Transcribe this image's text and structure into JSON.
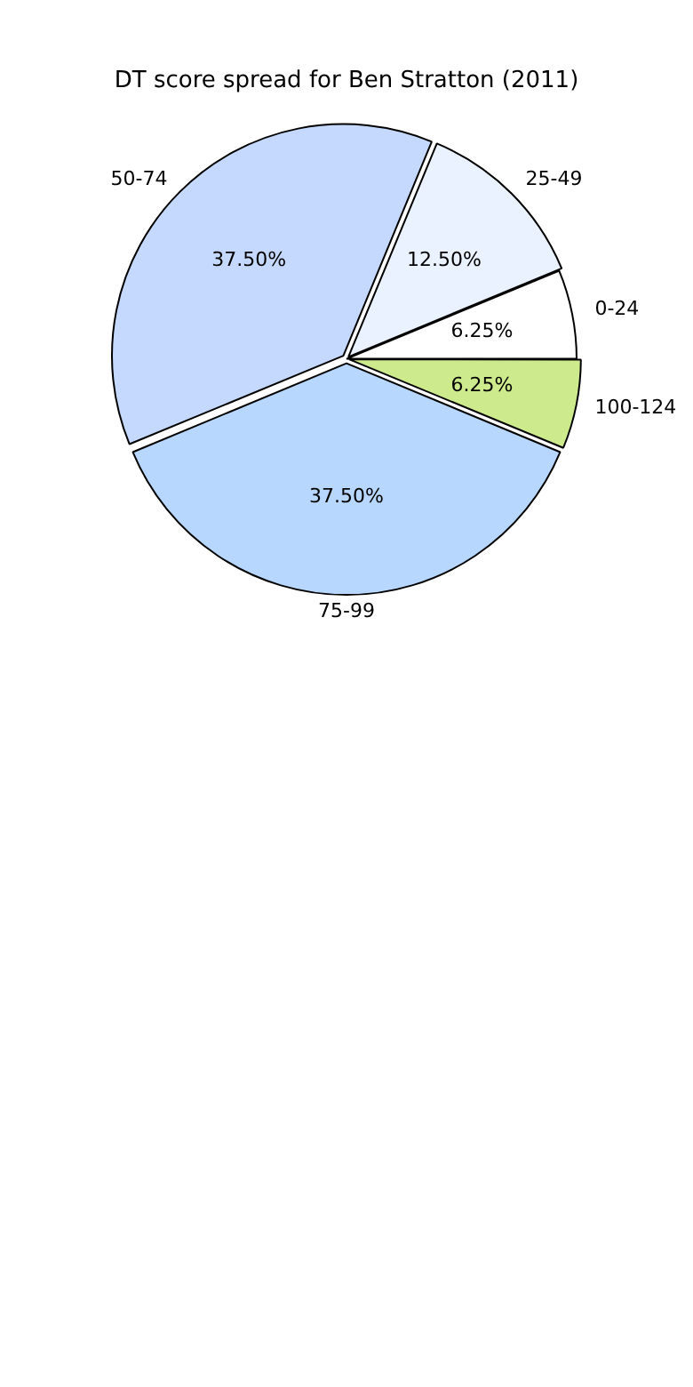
{
  "chart_data": {
    "type": "pie",
    "title": "DT score spread for Ben Stratton (2011)",
    "categories": [
      "100-124",
      "75-99",
      "50-74",
      "25-49",
      "0-24"
    ],
    "values": [
      6.25,
      37.5,
      37.5,
      12.5,
      6.25
    ],
    "colors": [
      "#cdea8c",
      "#b8d7ff",
      "#c5d9ff",
      "#eaf1ff",
      "#ffffff"
    ],
    "value_labels": [
      "6.25%",
      "37.50%",
      "37.50%",
      "12.50%",
      "6.25%"
    ],
    "legend": false
  }
}
